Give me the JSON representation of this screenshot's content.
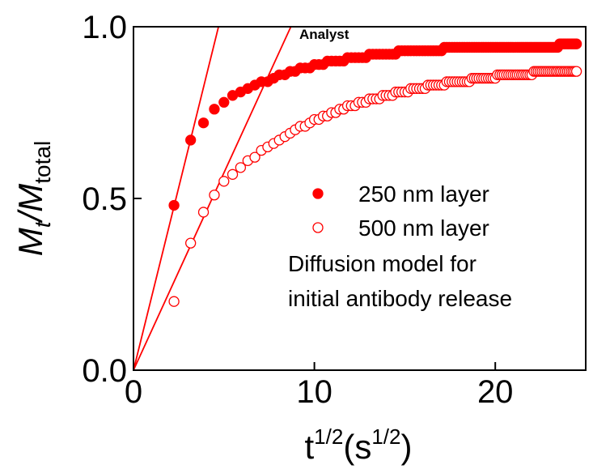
{
  "chart_data": {
    "type": "scatter",
    "ylabel": [
      "M",
      "t",
      "/M",
      "total"
    ],
    "xlabel": [
      "t",
      "1/2",
      "(s",
      "1/2",
      ")"
    ],
    "annotation": "Analyst",
    "xlim": [
      0,
      25
    ],
    "ylim": [
      0,
      1
    ],
    "xticks": [
      0,
      10,
      20
    ],
    "yticks": [
      {
        "value": 0,
        "label": "0.0"
      },
      {
        "value": 0.5,
        "label": "0.5"
      },
      {
        "value": 1,
        "label": "1.0"
      }
    ],
    "color": "#ff0000",
    "x": [
      2.24,
      3.16,
      3.87,
      4.47,
      5.0,
      5.48,
      5.92,
      6.32,
      6.71,
      7.07,
      7.42,
      7.75,
      8.06,
      8.37,
      8.66,
      8.94,
      9.22,
      9.49,
      9.75,
      10.0,
      10.25,
      10.49,
      10.72,
      10.95,
      11.18,
      11.4,
      11.62,
      11.83,
      12.04,
      12.25,
      12.45,
      12.65,
      12.85,
      13.04,
      13.23,
      13.42,
      13.6,
      13.78,
      13.96,
      14.14,
      14.32,
      14.49,
      14.66,
      14.83,
      15.0,
      15.17,
      15.33,
      15.49,
      15.65,
      15.81,
      15.97,
      16.12,
      16.28,
      16.43,
      16.58,
      16.73,
      16.88,
      17.03,
      17.18,
      17.32,
      17.46,
      17.61,
      17.75,
      17.89,
      18.03,
      18.17,
      18.3,
      18.44,
      18.57,
      18.71,
      18.84,
      18.97,
      19.1,
      19.24,
      19.36,
      19.49,
      19.62,
      19.75,
      19.87,
      20.0,
      20.12,
      20.25,
      20.37,
      20.49,
      20.62,
      20.74,
      20.86,
      20.98,
      21.1,
      21.21,
      21.33,
      21.45,
      21.56,
      21.68,
      21.79,
      21.91,
      22.02,
      22.14,
      22.25,
      22.36,
      22.47,
      22.58,
      22.69,
      22.8,
      22.91,
      23.02,
      23.13,
      23.24,
      23.35,
      23.45,
      23.56,
      23.66,
      23.77,
      23.87,
      23.98,
      24.08,
      24.19,
      24.29,
      24.39,
      24.49
    ],
    "series": [
      {
        "name": "250 nm layer",
        "filled": true,
        "values": [
          0.48,
          0.67,
          0.72,
          0.76,
          0.78,
          0.8,
          0.81,
          0.82,
          0.83,
          0.84,
          0.84,
          0.85,
          0.86,
          0.86,
          0.87,
          0.87,
          0.88,
          0.88,
          0.88,
          0.89,
          0.89,
          0.89,
          0.9,
          0.9,
          0.9,
          0.9,
          0.9,
          0.91,
          0.91,
          0.91,
          0.91,
          0.91,
          0.91,
          0.92,
          0.92,
          0.92,
          0.92,
          0.92,
          0.92,
          0.92,
          0.92,
          0.92,
          0.93,
          0.93,
          0.93,
          0.93,
          0.93,
          0.93,
          0.93,
          0.93,
          0.93,
          0.93,
          0.93,
          0.93,
          0.93,
          0.93,
          0.93,
          0.93,
          0.94,
          0.94,
          0.94,
          0.94,
          0.94,
          0.94,
          0.94,
          0.94,
          0.94,
          0.94,
          0.94,
          0.94,
          0.94,
          0.94,
          0.94,
          0.94,
          0.94,
          0.94,
          0.94,
          0.94,
          0.94,
          0.94,
          0.94,
          0.94,
          0.94,
          0.94,
          0.94,
          0.94,
          0.94,
          0.94,
          0.94,
          0.94,
          0.94,
          0.94,
          0.94,
          0.94,
          0.94,
          0.94,
          0.94,
          0.94,
          0.94,
          0.94,
          0.94,
          0.94,
          0.94,
          0.94,
          0.94,
          0.94,
          0.94,
          0.94,
          0.94,
          0.94,
          0.95,
          0.95,
          0.95,
          0.95,
          0.95,
          0.95,
          0.95,
          0.95,
          0.95,
          0.95
        ]
      },
      {
        "name": "500 nm layer",
        "filled": false,
        "values": [
          0.2,
          0.37,
          0.46,
          0.51,
          0.55,
          0.57,
          0.59,
          0.61,
          0.62,
          0.64,
          0.65,
          0.66,
          0.67,
          0.68,
          0.69,
          0.7,
          0.71,
          0.71,
          0.72,
          0.73,
          0.73,
          0.74,
          0.74,
          0.75,
          0.75,
          0.76,
          0.76,
          0.77,
          0.77,
          0.77,
          0.78,
          0.78,
          0.78,
          0.79,
          0.79,
          0.79,
          0.79,
          0.8,
          0.8,
          0.8,
          0.8,
          0.81,
          0.81,
          0.81,
          0.81,
          0.81,
          0.82,
          0.82,
          0.82,
          0.82,
          0.82,
          0.82,
          0.83,
          0.83,
          0.83,
          0.83,
          0.83,
          0.83,
          0.83,
          0.84,
          0.84,
          0.84,
          0.84,
          0.84,
          0.84,
          0.84,
          0.84,
          0.84,
          0.84,
          0.85,
          0.85,
          0.85,
          0.85,
          0.85,
          0.85,
          0.85,
          0.85,
          0.85,
          0.85,
          0.85,
          0.86,
          0.86,
          0.86,
          0.86,
          0.86,
          0.86,
          0.86,
          0.86,
          0.86,
          0.86,
          0.86,
          0.86,
          0.86,
          0.86,
          0.86,
          0.86,
          0.86,
          0.87,
          0.87,
          0.87,
          0.87,
          0.87,
          0.87,
          0.87,
          0.87,
          0.87,
          0.87,
          0.87,
          0.87,
          0.87,
          0.87,
          0.87,
          0.87,
          0.87,
          0.87,
          0.87,
          0.87,
          0.87,
          0.87,
          0.87
        ]
      }
    ],
    "lines": [
      {
        "x": [
          0,
          4.7
        ],
        "values": [
          0,
          1
        ]
      },
      {
        "x": [
          0,
          8.7
        ],
        "values": [
          0,
          1
        ]
      }
    ],
    "legend_note": [
      "Diffusion model for",
      "initial antibody release"
    ]
  }
}
